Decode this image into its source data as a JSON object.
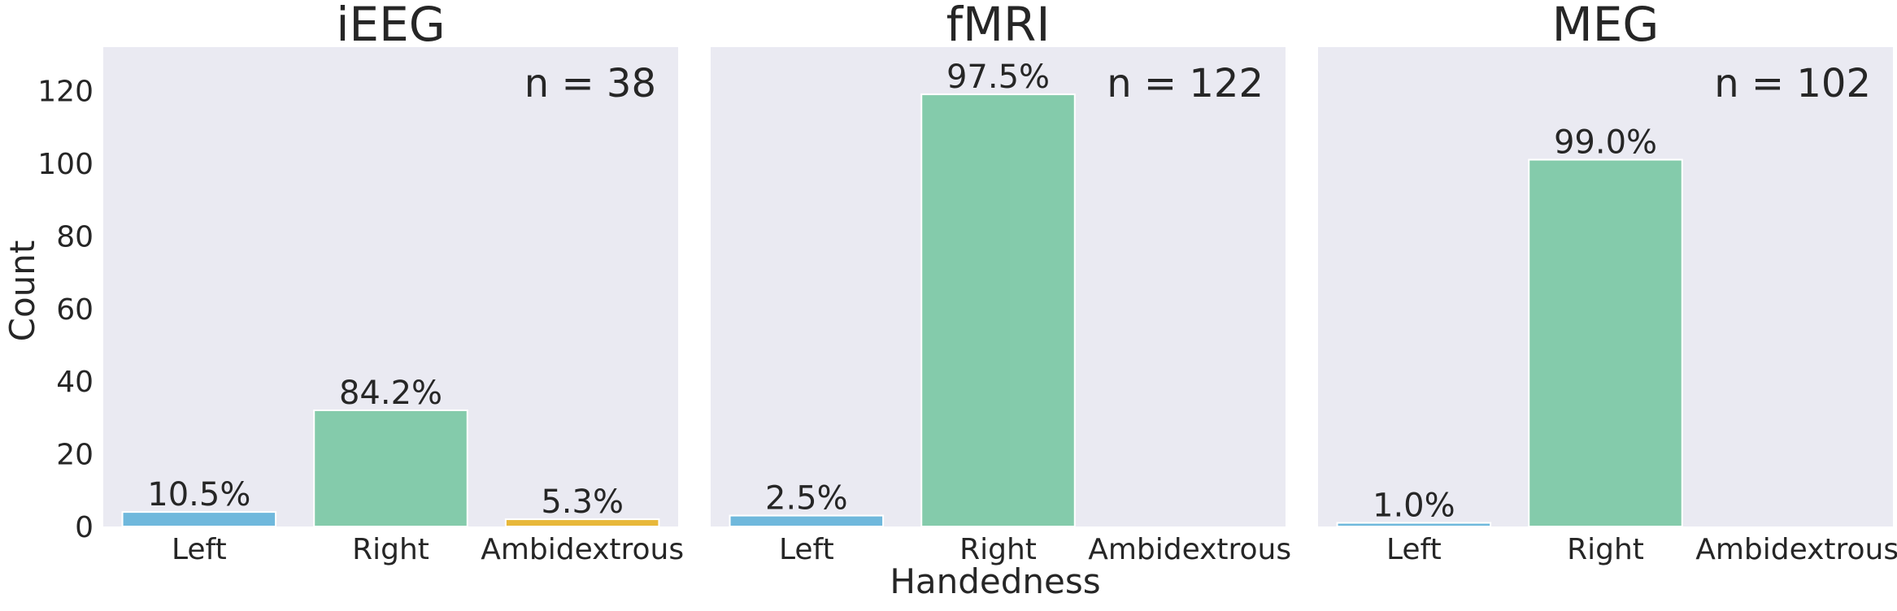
{
  "chart_data": {
    "type": "bar",
    "ylabel": "Count",
    "xlabel": "Handedness",
    "ylim": [
      0,
      132
    ],
    "yticks": [
      "0",
      "20",
      "40",
      "60",
      "80",
      "100",
      "120"
    ],
    "grid": false,
    "categories": [
      "Left",
      "Right",
      "Ambidextrous"
    ],
    "colors": [
      "#6fb8dc",
      "#84cbab",
      "#e8b83a"
    ],
    "panels": [
      {
        "title": "iEEG",
        "annotation": "n = 38",
        "values": [
          4,
          32,
          2
        ],
        "labels": [
          "10.5%",
          "84.2%",
          "5.3%"
        ]
      },
      {
        "title": "fMRI",
        "annotation": "n = 122",
        "values": [
          3,
          119,
          0
        ],
        "labels": [
          "2.5%",
          "97.5%",
          ""
        ]
      },
      {
        "title": "MEG",
        "annotation": "n = 102",
        "values": [
          1,
          101,
          0
        ],
        "labels": [
          "1.0%",
          "99.0%",
          ""
        ]
      }
    ]
  }
}
